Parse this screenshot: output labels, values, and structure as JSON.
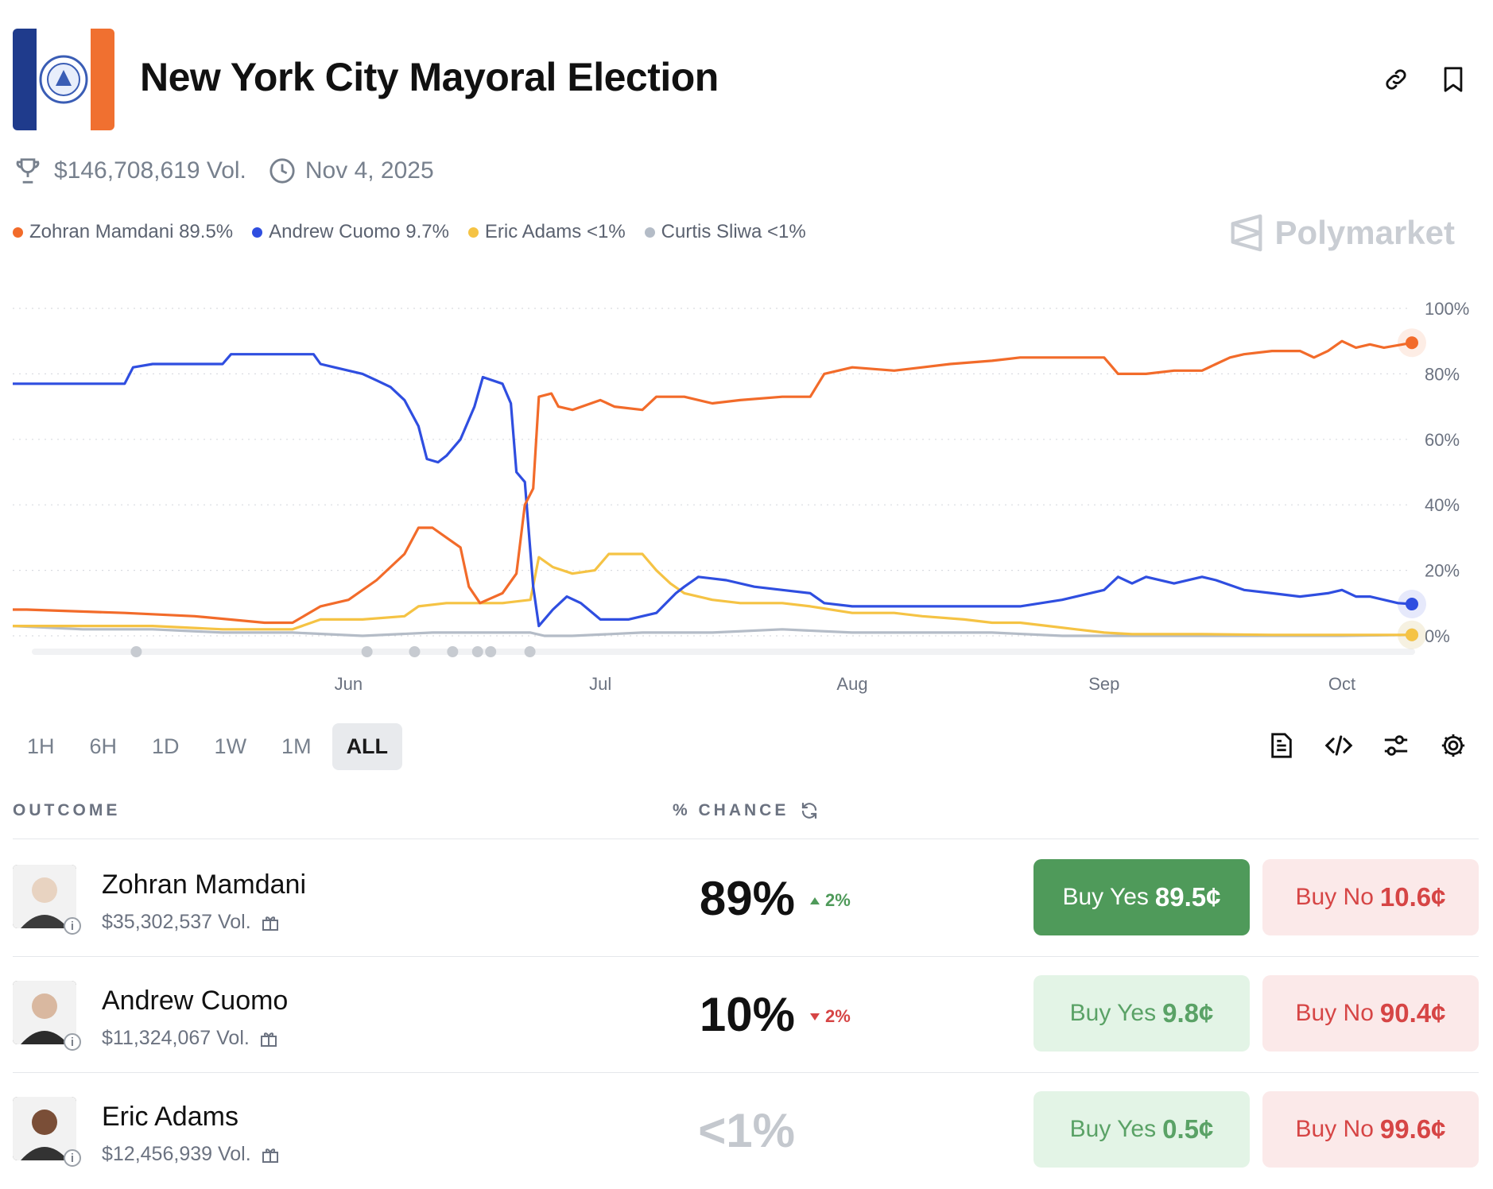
{
  "header": {
    "title": "New York City Mayoral Election",
    "volume": "$146,708,619 Vol.",
    "date": "Nov 4, 2025",
    "brand": "Polymarket"
  },
  "legend": [
    {
      "label": "Zohran Mamdani 89.5%",
      "color": "#f26b2a"
    },
    {
      "label": "Andrew Cuomo 9.7%",
      "color": "#2f4ee0"
    },
    {
      "label": "Eric Adams <1%",
      "color": "#f5c344"
    },
    {
      "label": "Curtis Sliwa <1%",
      "color": "#b4bcc7"
    }
  ],
  "chart_data": {
    "type": "line",
    "x_label_positions_note": "",
    "x_ticks": [
      "Jun",
      "Jul",
      "Aug",
      "Sep",
      "Oct"
    ],
    "y_ticks": [
      "100%",
      "80%",
      "60%",
      "40%",
      "20%",
      "0%"
    ],
    "ylim": [
      0,
      100
    ],
    "xlim": [
      0,
      100
    ],
    "grid": true,
    "legend": "top-left",
    "series": [
      {
        "name": "Zohran Mamdani",
        "color": "#f26b2a",
        "points": [
          [
            0,
            8
          ],
          [
            1,
            8
          ],
          [
            8,
            7
          ],
          [
            13,
            6
          ],
          [
            18,
            4
          ],
          [
            20,
            4
          ],
          [
            22,
            9
          ],
          [
            24,
            11
          ],
          [
            26,
            17
          ],
          [
            27,
            21
          ],
          [
            28,
            25
          ],
          [
            29,
            33
          ],
          [
            30,
            33
          ],
          [
            31,
            30
          ],
          [
            32,
            27
          ],
          [
            32.6,
            15
          ],
          [
            33.4,
            10
          ],
          [
            35,
            13
          ],
          [
            36,
            19
          ],
          [
            36.6,
            40
          ],
          [
            37.2,
            45
          ],
          [
            37.6,
            73
          ],
          [
            38.5,
            74
          ],
          [
            39,
            70
          ],
          [
            40,
            69
          ],
          [
            42,
            72
          ],
          [
            43,
            70
          ],
          [
            45,
            69
          ],
          [
            46,
            73
          ],
          [
            48,
            73
          ],
          [
            50,
            71
          ],
          [
            52,
            72
          ],
          [
            55,
            73
          ],
          [
            57,
            73
          ],
          [
            58,
            80
          ],
          [
            59,
            81
          ],
          [
            60,
            82
          ],
          [
            63,
            81
          ],
          [
            65,
            82
          ],
          [
            67,
            83
          ],
          [
            70,
            84
          ],
          [
            72,
            85
          ],
          [
            75,
            85
          ],
          [
            78,
            85
          ],
          [
            79,
            80
          ],
          [
            81,
            80
          ],
          [
            83,
            81
          ],
          [
            85,
            81
          ],
          [
            86,
            83
          ],
          [
            87,
            85
          ],
          [
            88,
            86
          ],
          [
            90,
            87
          ],
          [
            92,
            87
          ],
          [
            93,
            85
          ],
          [
            94,
            87
          ],
          [
            95,
            90
          ],
          [
            96,
            88
          ],
          [
            97,
            89
          ],
          [
            98,
            88
          ],
          [
            100,
            89.5
          ]
        ]
      },
      {
        "name": "Andrew Cuomo",
        "color": "#2f4ee0",
        "points": [
          [
            0,
            77
          ],
          [
            8,
            77
          ],
          [
            8.6,
            82
          ],
          [
            10,
            83
          ],
          [
            15,
            83
          ],
          [
            15.6,
            86
          ],
          [
            19,
            86
          ],
          [
            21.5,
            86
          ],
          [
            22,
            83
          ],
          [
            23,
            82
          ],
          [
            25,
            80
          ],
          [
            26,
            78
          ],
          [
            27,
            76
          ],
          [
            28,
            72
          ],
          [
            29,
            64
          ],
          [
            29.6,
            54
          ],
          [
            30.4,
            53
          ],
          [
            31,
            55
          ],
          [
            32,
            60
          ],
          [
            33,
            70
          ],
          [
            33.6,
            79
          ],
          [
            35,
            77
          ],
          [
            35.6,
            71
          ],
          [
            36,
            50
          ],
          [
            36.6,
            47
          ],
          [
            37.2,
            15
          ],
          [
            37.6,
            3
          ],
          [
            38.6,
            8
          ],
          [
            39.6,
            12
          ],
          [
            40.6,
            10
          ],
          [
            42,
            5
          ],
          [
            44,
            5
          ],
          [
            46,
            7
          ],
          [
            47.4,
            13
          ],
          [
            48,
            15
          ],
          [
            49,
            18
          ],
          [
            51,
            17
          ],
          [
            53,
            15
          ],
          [
            55,
            14
          ],
          [
            57,
            13
          ],
          [
            58,
            10
          ],
          [
            60,
            9
          ],
          [
            63,
            9
          ],
          [
            65,
            9
          ],
          [
            68,
            9
          ],
          [
            72,
            9
          ],
          [
            75,
            11
          ],
          [
            78,
            14
          ],
          [
            79,
            18
          ],
          [
            80,
            16
          ],
          [
            81,
            18
          ],
          [
            83,
            16
          ],
          [
            85,
            18
          ],
          [
            86,
            17
          ],
          [
            88,
            14
          ],
          [
            90,
            13
          ],
          [
            92,
            12
          ],
          [
            94,
            13
          ],
          [
            95,
            14
          ],
          [
            96,
            12
          ],
          [
            97,
            12
          ],
          [
            98,
            11
          ],
          [
            99,
            10
          ],
          [
            100,
            9.7
          ]
        ]
      },
      {
        "name": "Eric Adams",
        "color": "#f5c344",
        "points": [
          [
            0,
            3
          ],
          [
            5,
            3
          ],
          [
            10,
            3
          ],
          [
            15,
            2
          ],
          [
            20,
            2
          ],
          [
            22,
            5
          ],
          [
            25,
            5
          ],
          [
            28,
            6
          ],
          [
            29,
            9
          ],
          [
            31,
            10
          ],
          [
            33,
            10
          ],
          [
            35,
            10
          ],
          [
            37,
            11
          ],
          [
            37.6,
            24
          ],
          [
            38.6,
            21
          ],
          [
            40,
            19
          ],
          [
            41.6,
            20
          ],
          [
            42.6,
            25
          ],
          [
            44,
            25
          ],
          [
            45,
            25
          ],
          [
            46,
            20
          ],
          [
            47,
            16
          ],
          [
            48,
            13
          ],
          [
            50,
            11
          ],
          [
            52,
            10
          ],
          [
            55,
            10
          ],
          [
            57,
            9
          ],
          [
            60,
            7
          ],
          [
            63,
            7
          ],
          [
            65,
            6
          ],
          [
            68,
            5
          ],
          [
            70,
            4
          ],
          [
            72,
            4
          ],
          [
            74,
            3
          ],
          [
            76,
            2
          ],
          [
            78,
            1
          ],
          [
            80,
            0.5
          ],
          [
            85,
            0.5
          ],
          [
            90,
            0.3
          ],
          [
            95,
            0.3
          ],
          [
            100,
            0.3
          ]
        ]
      },
      {
        "name": "Curtis Sliwa",
        "color": "#b4bcc7",
        "points": [
          [
            0,
            3
          ],
          [
            5,
            2
          ],
          [
            10,
            2
          ],
          [
            15,
            1
          ],
          [
            20,
            1
          ],
          [
            25,
            0
          ],
          [
            30,
            1
          ],
          [
            35,
            1
          ],
          [
            37,
            1
          ],
          [
            38,
            0
          ],
          [
            40,
            0
          ],
          [
            45,
            1
          ],
          [
            50,
            1
          ],
          [
            55,
            2
          ],
          [
            60,
            1
          ],
          [
            65,
            1
          ],
          [
            70,
            1
          ],
          [
            75,
            0
          ],
          [
            80,
            0
          ],
          [
            85,
            0
          ],
          [
            90,
            0
          ],
          [
            95,
            0
          ],
          [
            100,
            0.3
          ]
        ]
      }
    ]
  },
  "ranges": [
    "1H",
    "6H",
    "1D",
    "1W",
    "1M",
    "ALL"
  ],
  "active_range": "ALL",
  "table": {
    "col_outcome": "OUTCOME",
    "col_chance": "% CHANCE",
    "rows": [
      {
        "name": "Zohran Mamdani",
        "vol": "$35,302,537 Vol.",
        "pct": "89%",
        "change": "2%",
        "dir": "up",
        "yes_label": "Buy Yes",
        "yes_price": "89.5¢",
        "no_label": "Buy No",
        "no_price": "10.6¢"
      },
      {
        "name": "Andrew Cuomo",
        "vol": "$11,324,067 Vol.",
        "pct": "10%",
        "change": "2%",
        "dir": "down",
        "yes_label": "Buy Yes",
        "yes_price": "9.8¢",
        "no_label": "Buy No",
        "no_price": "90.4¢"
      },
      {
        "name": "Eric Adams",
        "vol": "$12,456,939 Vol.",
        "pct": "<1%",
        "change": "",
        "dir": "",
        "yes_label": "Buy Yes",
        "yes_price": "0.5¢",
        "no_label": "Buy No",
        "no_price": "99.6¢"
      }
    ]
  },
  "colors": {
    "accent": "#4f9a5a",
    "no": "#d64545",
    "up": "#4f9a5a",
    "down": "#d64545"
  }
}
